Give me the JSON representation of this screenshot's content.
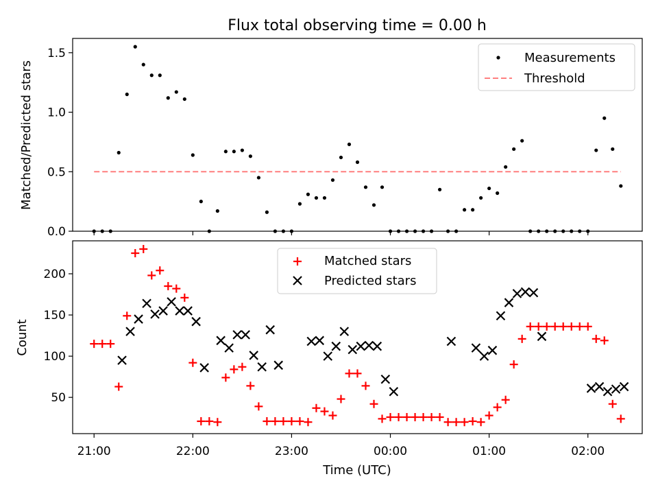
{
  "chart_data": [
    {
      "type": "scatter",
      "title": "Flux total observing time = 0.00 h",
      "ylabel": "Matched/Predicted stars",
      "xlabel": "",
      "ylim": [
        0,
        1.62
      ],
      "yticks": [
        "0.0",
        "0.5",
        "1.0",
        "1.5"
      ],
      "legend_position": "top-right",
      "series": [
        {
          "name": "Measurements",
          "marker": "dot",
          "color": "#000000",
          "x": [
            0,
            5,
            10,
            15,
            20,
            25,
            30,
            35,
            40,
            45,
            50,
            55,
            60,
            65,
            70,
            75,
            80,
            85,
            90,
            95,
            100,
            105,
            110,
            115,
            120,
            125,
            130,
            135,
            140,
            145,
            150,
            155,
            160,
            165,
            170,
            175,
            180,
            185,
            190,
            195,
            200,
            205,
            210,
            215,
            220,
            225,
            230,
            235,
            240,
            245,
            250,
            255,
            260,
            265,
            270,
            275,
            280,
            285,
            290,
            295,
            300,
            305,
            310,
            315,
            320
          ],
          "y": [
            0.0,
            0.0,
            0.0,
            0.66,
            1.15,
            1.55,
            1.4,
            1.31,
            1.31,
            1.12,
            1.17,
            1.11,
            0.64,
            0.25,
            0.0,
            0.17,
            0.67,
            0.67,
            0.68,
            0.63,
            0.45,
            0.16,
            0.0,
            0.0,
            0.0,
            0.23,
            0.31,
            0.28,
            0.28,
            0.43,
            0.62,
            0.73,
            0.58,
            0.37,
            0.22,
            0.37,
            0.0,
            0.0,
            0.0,
            0.0,
            0.0,
            0.0,
            0.35,
            0.0,
            0.0,
            0.18,
            0.18,
            0.28,
            0.36,
            0.32,
            0.54,
            0.69,
            0.76,
            0.0,
            0.0,
            0.0,
            0.0,
            0.0,
            0.0,
            0.0,
            0.0,
            0.68,
            0.95,
            0.69,
            0.38
          ]
        },
        {
          "name": "Threshold",
          "marker": "dashed-line",
          "color": "#ff7f7f",
          "x": [
            0,
            320
          ],
          "y": [
            0.5,
            0.5
          ]
        }
      ]
    },
    {
      "type": "scatter",
      "title": "",
      "ylabel": "Count",
      "xlabel": "Time (UTC)",
      "ylim": [
        6,
        240
      ],
      "yticks": [
        "50",
        "100",
        "150",
        "200"
      ],
      "xlim": [
        -13,
        333
      ],
      "xticks": [
        {
          "minutes": 0,
          "label": "21:00"
        },
        {
          "minutes": 60,
          "label": "22:00"
        },
        {
          "minutes": 120,
          "label": "23:00"
        },
        {
          "minutes": 180,
          "label": "00:00"
        },
        {
          "minutes": 240,
          "label": "01:00"
        },
        {
          "minutes": 300,
          "label": "02:00"
        }
      ],
      "legend_position": "top-center",
      "series": [
        {
          "name": "Matched stars",
          "marker": "plus",
          "color": "#ff0000",
          "x": [
            0,
            5,
            10,
            15,
            20,
            25,
            30,
            35,
            40,
            45,
            50,
            55,
            60,
            65,
            70,
            75,
            80,
            85,
            90,
            95,
            100,
            105,
            110,
            115,
            120,
            125,
            130,
            135,
            140,
            145,
            150,
            155,
            160,
            165,
            170,
            175,
            180,
            185,
            190,
            195,
            200,
            205,
            210,
            215,
            220,
            225,
            230,
            235,
            240,
            245,
            250,
            255,
            260,
            265,
            270,
            275,
            280,
            285,
            290,
            295,
            300,
            305,
            310,
            315,
            320
          ],
          "y": [
            115,
            115,
            115,
            63,
            149,
            225,
            230,
            198,
            204,
            185,
            182,
            171,
            92,
            21,
            21,
            20,
            74,
            84,
            87,
            64,
            39,
            21,
            21,
            21,
            21,
            21,
            20,
            37,
            33,
            28,
            48,
            79,
            79,
            64,
            42,
            24,
            26,
            26,
            26,
            26,
            26,
            26,
            26,
            20,
            20,
            20,
            21,
            20,
            28,
            38,
            47,
            90,
            121,
            136,
            136,
            136,
            136,
            136,
            136,
            136,
            136,
            121,
            119,
            42,
            24
          ]
        },
        {
          "name": "Predicted stars",
          "marker": "x",
          "color": "#000000",
          "x": [
            17,
            22,
            27,
            32,
            37,
            42,
            47,
            52,
            57,
            62,
            67,
            77,
            82,
            87,
            92,
            97,
            102,
            107,
            112,
            132,
            137,
            142,
            147,
            152,
            157,
            162,
            167,
            172,
            177,
            182,
            217,
            232,
            237,
            242,
            247,
            252,
            257,
            262,
            267,
            272,
            302,
            307,
            312,
            317,
            322
          ],
          "y": [
            95,
            130,
            145,
            164,
            151,
            155,
            166,
            155,
            155,
            142,
            86,
            119,
            110,
            126,
            126,
            101,
            87,
            132,
            89,
            118,
            119,
            100,
            112,
            130,
            108,
            112,
            113,
            112,
            72,
            57,
            118,
            110,
            100,
            107,
            149,
            165,
            176,
            178,
            177,
            124,
            61,
            63,
            57,
            60,
            63
          ]
        }
      ]
    }
  ]
}
